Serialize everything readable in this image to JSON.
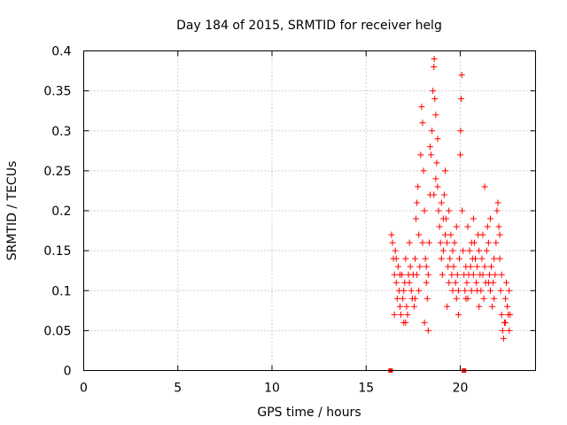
{
  "chart_data": {
    "type": "scatter",
    "title": "Day 184 of 2015, SRMTID for receiver helg",
    "xlabel": "GPS time / hours",
    "ylabel": "SRMTID / TECUs",
    "xlim": [
      0,
      24
    ],
    "ylim": [
      0,
      0.4
    ],
    "xticks": [
      "0",
      "5",
      "10",
      "15",
      "20"
    ],
    "yticks": [
      "0",
      "0.05",
      "0.1",
      "0.15",
      "0.2",
      "0.25",
      "0.3",
      "0.35",
      "0.4"
    ],
    "grid": true,
    "marker": "+",
    "color": "#ff0000",
    "zero_markers": [
      {
        "x": 16.3,
        "y": 0
      },
      {
        "x": 20.2,
        "y": 0
      }
    ],
    "series": [
      {
        "name": "SRMTID",
        "points": [
          [
            16.35,
            0.17
          ],
          [
            16.4,
            0.16
          ],
          [
            16.45,
            0.14
          ],
          [
            16.5,
            0.12
          ],
          [
            16.55,
            0.15
          ],
          [
            16.6,
            0.11
          ],
          [
            16.65,
            0.09
          ],
          [
            16.7,
            0.13
          ],
          [
            16.75,
            0.1
          ],
          [
            16.8,
            0.08
          ],
          [
            16.85,
            0.07
          ],
          [
            16.9,
            0.12
          ],
          [
            16.95,
            0.09
          ],
          [
            17.0,
            0.06
          ],
          [
            17.05,
            0.11
          ],
          [
            17.1,
            0.14
          ],
          [
            17.15,
            0.08
          ],
          [
            17.2,
            0.07
          ],
          [
            17.25,
            0.12
          ],
          [
            17.3,
            0.16
          ],
          [
            17.35,
            0.13
          ],
          [
            17.4,
            0.1
          ],
          [
            17.45,
            0.09
          ],
          [
            17.5,
            0.12
          ],
          [
            17.55,
            0.08
          ],
          [
            17.6,
            0.14
          ],
          [
            17.65,
            0.19
          ],
          [
            17.7,
            0.21
          ],
          [
            17.75,
            0.23
          ],
          [
            17.8,
            0.17
          ],
          [
            17.85,
            0.13
          ],
          [
            17.9,
            0.27
          ],
          [
            17.95,
            0.33
          ],
          [
            18.0,
            0.31
          ],
          [
            18.05,
            0.25
          ],
          [
            18.1,
            0.2
          ],
          [
            18.15,
            0.14
          ],
          [
            18.2,
            0.11
          ],
          [
            18.25,
            0.09
          ],
          [
            18.3,
            0.12
          ],
          [
            18.35,
            0.16
          ],
          [
            18.4,
            0.22
          ],
          [
            18.45,
            0.27
          ],
          [
            18.5,
            0.3
          ],
          [
            18.55,
            0.35
          ],
          [
            18.6,
            0.38
          ],
          [
            18.62,
            0.39
          ],
          [
            18.65,
            0.34
          ],
          [
            18.7,
            0.32
          ],
          [
            18.75,
            0.26
          ],
          [
            18.8,
            0.23
          ],
          [
            18.85,
            0.2
          ],
          [
            18.9,
            0.18
          ],
          [
            18.95,
            0.16
          ],
          [
            19.0,
            0.14
          ],
          [
            19.05,
            0.12
          ],
          [
            19.1,
            0.15
          ],
          [
            19.15,
            0.22
          ],
          [
            19.2,
            0.25
          ],
          [
            19.25,
            0.19
          ],
          [
            19.3,
            0.16
          ],
          [
            19.35,
            0.13
          ],
          [
            19.4,
            0.11
          ],
          [
            19.45,
            0.14
          ],
          [
            19.5,
            0.17
          ],
          [
            19.55,
            0.12
          ],
          [
            19.6,
            0.1
          ],
          [
            19.65,
            0.13
          ],
          [
            19.7,
            0.16
          ],
          [
            19.75,
            0.11
          ],
          [
            19.8,
            0.09
          ],
          [
            19.85,
            0.12
          ],
          [
            19.9,
            0.1
          ],
          [
            19.95,
            0.14
          ],
          [
            20.0,
            0.27
          ],
          [
            20.02,
            0.3
          ],
          [
            20.05,
            0.34
          ],
          [
            20.08,
            0.37
          ],
          [
            20.1,
            0.2
          ],
          [
            20.15,
            0.15
          ],
          [
            20.2,
            0.12
          ],
          [
            20.25,
            0.1
          ],
          [
            20.3,
            0.13
          ],
          [
            20.35,
            0.11
          ],
          [
            20.4,
            0.09
          ],
          [
            20.45,
            0.12
          ],
          [
            20.5,
            0.15
          ],
          [
            20.55,
            0.13
          ],
          [
            20.6,
            0.1
          ],
          [
            20.65,
            0.14
          ],
          [
            20.7,
            0.12
          ],
          [
            20.75,
            0.16
          ],
          [
            20.8,
            0.14
          ],
          [
            20.85,
            0.11
          ],
          [
            20.9,
            0.13
          ],
          [
            20.95,
            0.17
          ],
          [
            21.0,
            0.15
          ],
          [
            21.05,
            0.12
          ],
          [
            21.1,
            0.1
          ],
          [
            21.15,
            0.14
          ],
          [
            21.2,
            0.12
          ],
          [
            21.25,
            0.09
          ],
          [
            21.3,
            0.13
          ],
          [
            21.35,
            0.11
          ],
          [
            21.4,
            0.15
          ],
          [
            21.45,
            0.18
          ],
          [
            21.5,
            0.16
          ],
          [
            21.55,
            0.12
          ],
          [
            21.6,
            0.1
          ],
          [
            21.65,
            0.13
          ],
          [
            21.7,
            0.08
          ],
          [
            21.75,
            0.11
          ],
          [
            21.8,
            0.14
          ],
          [
            21.85,
            0.12
          ],
          [
            21.9,
            0.16
          ],
          [
            21.95,
            0.2
          ],
          [
            22.0,
            0.21
          ],
          [
            22.05,
            0.18
          ],
          [
            22.1,
            0.14
          ],
          [
            22.15,
            0.1
          ],
          [
            22.2,
            0.07
          ],
          [
            22.25,
            0.05
          ],
          [
            22.3,
            0.04
          ],
          [
            22.35,
            0.06
          ],
          [
            22.4,
            0.09
          ],
          [
            22.45,
            0.11
          ],
          [
            22.5,
            0.08
          ],
          [
            22.55,
            0.07
          ],
          [
            22.6,
            0.1
          ],
          [
            22.65,
            0.07
          ],
          [
            16.6,
            0.14
          ],
          [
            16.8,
            0.12
          ],
          [
            17.0,
            0.1
          ],
          [
            17.3,
            0.11
          ],
          [
            17.6,
            0.09
          ],
          [
            17.8,
            0.1
          ],
          [
            18.0,
            0.16
          ],
          [
            18.2,
            0.13
          ],
          [
            18.4,
            0.28
          ],
          [
            18.6,
            0.22
          ],
          [
            18.8,
            0.29
          ],
          [
            19.0,
            0.21
          ],
          [
            19.2,
            0.17
          ],
          [
            19.4,
            0.2
          ],
          [
            19.6,
            0.15
          ],
          [
            19.8,
            0.18
          ],
          [
            20.3,
            0.09
          ],
          [
            20.6,
            0.16
          ],
          [
            20.9,
            0.1
          ],
          [
            21.2,
            0.17
          ],
          [
            21.5,
            0.11
          ],
          [
            21.8,
            0.09
          ],
          [
            22.1,
            0.17
          ],
          [
            22.4,
            0.06
          ],
          [
            22.6,
            0.05
          ],
          [
            16.5,
            0.07
          ],
          [
            17.1,
            0.06
          ],
          [
            17.7,
            0.12
          ],
          [
            18.3,
            0.05
          ],
          [
            18.7,
            0.24
          ],
          [
            19.3,
            0.08
          ],
          [
            19.9,
            0.07
          ],
          [
            20.4,
            0.18
          ],
          [
            21.0,
            0.08
          ],
          [
            21.6,
            0.19
          ],
          [
            22.2,
            0.12
          ],
          [
            18.1,
            0.06
          ],
          [
            21.3,
            0.23
          ],
          [
            20.7,
            0.19
          ],
          [
            19.1,
            0.19
          ]
        ]
      }
    ]
  }
}
